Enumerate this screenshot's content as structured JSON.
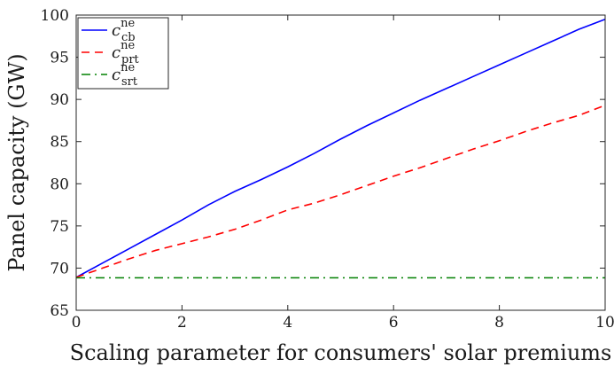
{
  "chart_data": {
    "type": "line",
    "xlabel": "Scaling parameter for consumers' solar premiums",
    "ylabel": "Panel capacity (GW)",
    "xlim": [
      0,
      10
    ],
    "ylim": [
      65,
      100
    ],
    "xticks": [
      0,
      2,
      4,
      6,
      8,
      10
    ],
    "yticks": [
      65,
      70,
      75,
      80,
      85,
      90,
      95,
      100
    ],
    "grid": false,
    "legend_position": "top-left",
    "x": [
      0,
      0.5,
      1,
      1.5,
      2,
      2.5,
      3,
      3.5,
      4,
      4.5,
      5,
      5.5,
      6,
      6.5,
      7,
      7.5,
      8,
      8.5,
      9,
      9.5,
      10
    ],
    "series": [
      {
        "name": "c_cb^ne",
        "legend_base": "c",
        "legend_sup": "ne",
        "legend_sub": "cb",
        "color": "#0000ff",
        "dash": "solid",
        "values": [
          68.9,
          70.6,
          72.3,
          74.0,
          75.7,
          77.5,
          79.1,
          80.5,
          82.0,
          83.6,
          85.3,
          86.9,
          88.4,
          89.9,
          91.3,
          92.7,
          94.1,
          95.5,
          96.9,
          98.3,
          99.5
        ]
      },
      {
        "name": "c_prt^ne",
        "legend_base": "c",
        "legend_sup": "ne",
        "legend_sub": "prt",
        "color": "#ff0000",
        "dash": "dashed",
        "values": [
          68.9,
          70.0,
          71.1,
          72.1,
          72.9,
          73.7,
          74.6,
          75.7,
          76.9,
          77.7,
          78.7,
          79.8,
          80.9,
          81.9,
          83.0,
          84.1,
          85.1,
          86.2,
          87.2,
          88.1,
          89.3
        ]
      },
      {
        "name": "c_srt^ne",
        "legend_base": "c",
        "legend_sup": "ne",
        "legend_sub": "srt",
        "color": "#008000",
        "dash": "dashdot",
        "values": [
          68.85,
          68.85,
          68.85,
          68.85,
          68.85,
          68.85,
          68.85,
          68.85,
          68.85,
          68.85,
          68.85,
          68.85,
          68.85,
          68.85,
          68.85,
          68.85,
          68.85,
          68.85,
          68.85,
          68.85,
          68.85
        ]
      }
    ]
  }
}
